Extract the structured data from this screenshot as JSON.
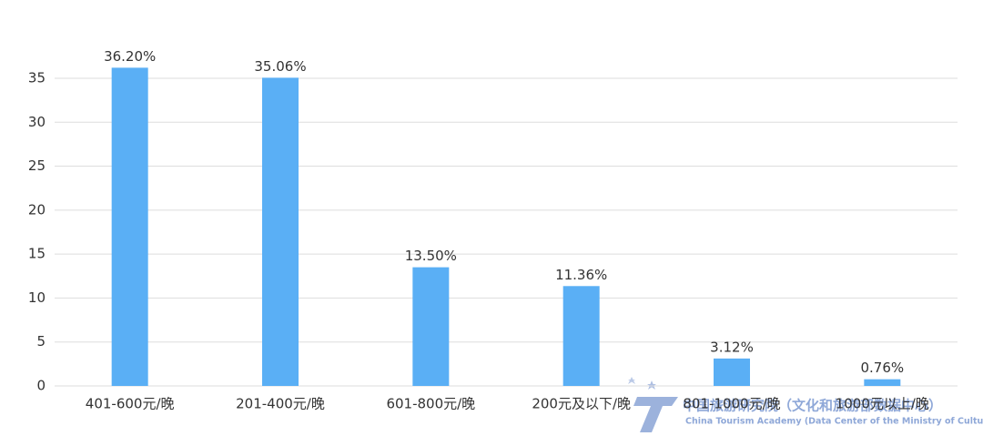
{
  "chart_data": {
    "type": "bar",
    "categories": [
      "401-600元/晚",
      "201-400元/晚",
      "601-800元/晚",
      "200元及以下/晚",
      "801-1000元/晚",
      "1000元以上/晚"
    ],
    "values": [
      36.2,
      35.06,
      13.5,
      11.36,
      3.12,
      0.76
    ],
    "value_labels": [
      "36.20%",
      "35.06%",
      "13.50%",
      "11.36%",
      "3.12%",
      "0.76%"
    ],
    "color": "#5aaff5",
    "ylim": [
      0,
      38
    ],
    "yticks": [
      0,
      5,
      10,
      15,
      20,
      25,
      30,
      35
    ],
    "grid": true
  },
  "watermark": {
    "title": "中国旅游研究院（文化和旅游部数据中心）",
    "subtitle": "China Tourism Academy (Data Center of the Ministry of Culture and Tourism)"
  }
}
